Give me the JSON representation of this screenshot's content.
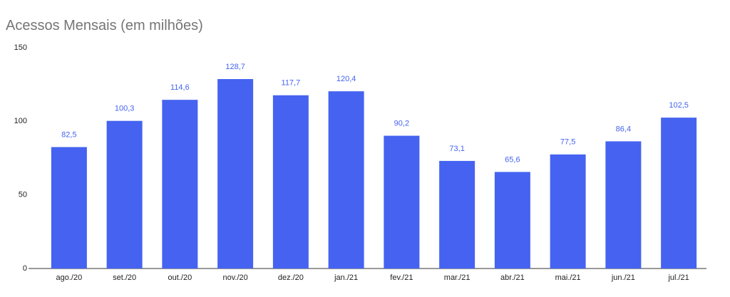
{
  "chart_data": {
    "type": "bar",
    "title": "Acessos Mensais (em milhões)",
    "categories": [
      "ago./20",
      "set./20",
      "out./20",
      "nov./20",
      "dez./20",
      "jan./21",
      "fev./21",
      "mar./21",
      "abr./21",
      "mai./21",
      "jun./21",
      "jul./21"
    ],
    "values": [
      82.5,
      100.3,
      114.6,
      128.7,
      117.7,
      120.4,
      90.2,
      73.1,
      65.6,
      77.5,
      86.4,
      102.5
    ],
    "value_labels": [
      "82,5",
      "100,3",
      "114,6",
      "128,7",
      "117,7",
      "120,4",
      "90,2",
      "73,1",
      "65,6",
      "77,5",
      "86,4",
      "102,5"
    ],
    "color": "#4563f0",
    "ylim": [
      0,
      150
    ],
    "yticks": [
      0,
      50,
      100,
      150
    ],
    "grid": false
  }
}
